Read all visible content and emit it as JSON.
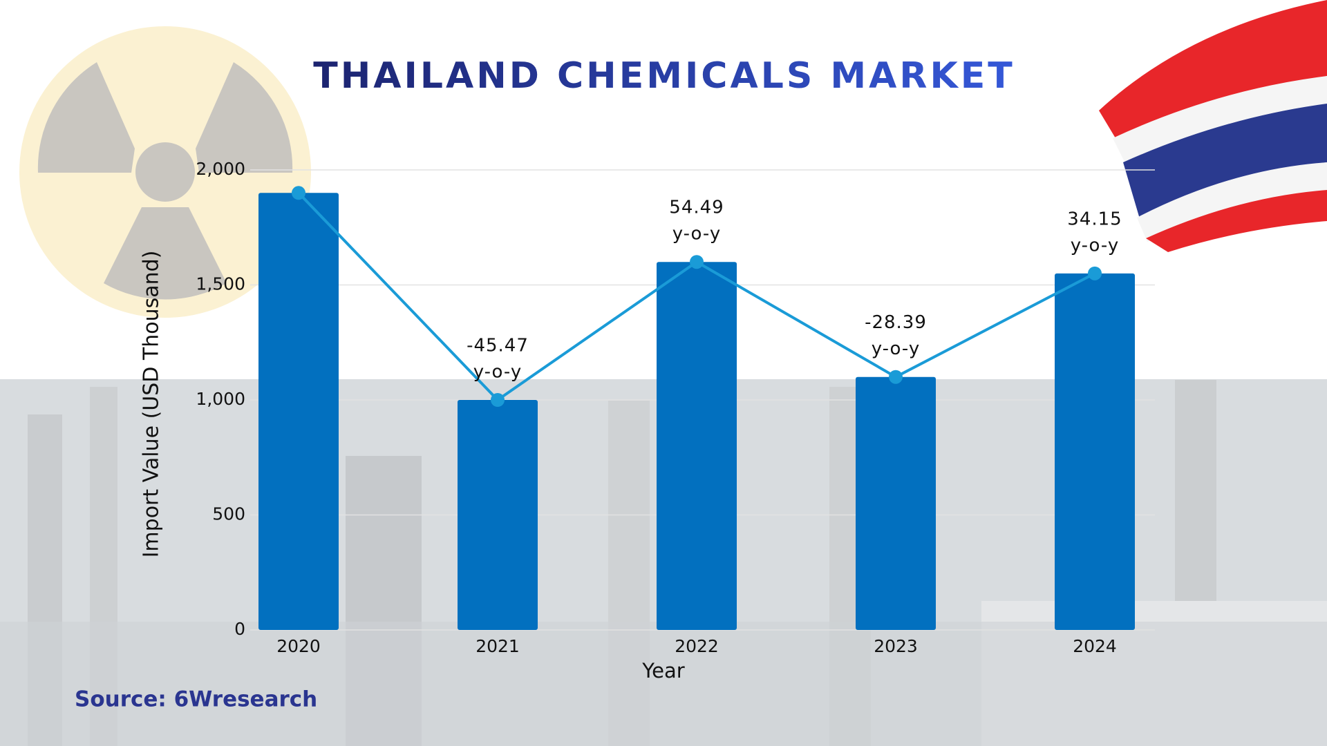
{
  "chart_data": {
    "type": "bar_line",
    "title": "THAILAND CHEMICALS MARKET",
    "x_label": "Year",
    "y_label": "Import Value (USD Thousand)",
    "source": "Source: 6Wresearch",
    "categories": [
      "2020",
      "2021",
      "2022",
      "2023",
      "2024"
    ],
    "values": [
      1900,
      1000,
      1600,
      1100,
      1550
    ],
    "yoy": [
      null,
      -45.47,
      54.49,
      -28.39,
      34.15
    ],
    "yoy_unit": "y-o-y",
    "bar_color": "#0270bf",
    "line_color": "#1a9bd7",
    "ylim": [
      0,
      2000
    ],
    "yticks": [
      0,
      500,
      {
        "value": 1000,
        "label": "1,000"
      },
      {
        "value": 1500,
        "label": "1,500"
      },
      {
        "value": 2000,
        "label": "2,000"
      }
    ],
    "grid": true
  }
}
